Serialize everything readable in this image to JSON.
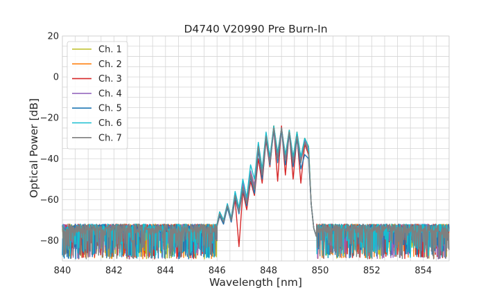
{
  "chart_data": {
    "type": "line",
    "title": "D4740 V20990 Pre Burn-In",
    "xlabel": "Wavelength [nm]",
    "ylabel": "Optical Power [dB]",
    "xlim": [
      840,
      855
    ],
    "ylim": [
      -90,
      20
    ],
    "xticks": [
      "840",
      "842",
      "844",
      "846",
      "848",
      "850",
      "852",
      "854"
    ],
    "yticks": [
      "20",
      "0",
      "−20",
      "−40",
      "−60",
      "−80"
    ],
    "grid": true,
    "legend_position": "top-left",
    "noise_floor": [
      -89,
      -72
    ],
    "series": [
      {
        "name": "Ch. 1",
        "color": "#bcbd22",
        "x": [
          846.0,
          846.1,
          846.25,
          846.4,
          846.55,
          846.7,
          846.85,
          847.0,
          847.15,
          847.3,
          847.45,
          847.6,
          847.75,
          847.9,
          848.05,
          848.2,
          848.35,
          848.5,
          848.65,
          848.8,
          848.95,
          849.1,
          849.25,
          849.4,
          849.55,
          849.65,
          849.75,
          849.85
        ],
        "y": [
          -72,
          -66,
          -70,
          -63,
          -69,
          -58,
          -65,
          -53,
          -60,
          -46,
          -53,
          -33,
          -46,
          -28,
          -40,
          -24,
          -38,
          -25,
          -39,
          -26,
          -40,
          -27,
          -40,
          -30,
          -34,
          -62,
          -74,
          -78
        ]
      },
      {
        "name": "Ch. 2",
        "color": "#ff7f0e",
        "x": [
          846.0,
          846.1,
          846.25,
          846.4,
          846.55,
          846.7,
          846.85,
          847.0,
          847.15,
          847.3,
          847.45,
          847.6,
          847.75,
          847.9,
          848.05,
          848.2,
          848.35,
          848.5,
          848.65,
          848.8,
          848.95,
          849.1,
          849.25,
          849.4,
          849.55,
          849.65,
          849.75,
          849.85
        ],
        "y": [
          -72,
          -67,
          -71,
          -64,
          -70,
          -58,
          -66,
          -53,
          -61,
          -47,
          -54,
          -33,
          -47,
          -28,
          -41,
          -24,
          -39,
          -25,
          -40,
          -26,
          -41,
          -27,
          -41,
          -30,
          -35,
          -62,
          -74,
          -78
        ]
      },
      {
        "name": "Ch. 3",
        "color": "#d62728",
        "x": [
          846.0,
          846.1,
          846.25,
          846.4,
          846.55,
          846.7,
          846.85,
          847.0,
          847.15,
          847.3,
          847.45,
          847.6,
          847.75,
          847.9,
          848.05,
          848.2,
          848.35,
          848.5,
          848.65,
          848.8,
          848.95,
          849.1,
          849.25,
          849.4,
          849.55,
          849.65,
          849.75,
          849.85
        ],
        "y": [
          -73,
          -68,
          -72,
          -63,
          -71,
          -60,
          -83,
          -56,
          -65,
          -51,
          -58,
          -40,
          -52,
          -31,
          -44,
          -25,
          -51,
          -24,
          -48,
          -27,
          -50,
          -29,
          -52,
          -33,
          -38,
          -62,
          -74,
          -78
        ]
      },
      {
        "name": "Ch. 4",
        "color": "#9467bd",
        "x": [
          846.0,
          846.1,
          846.25,
          846.4,
          846.55,
          846.7,
          846.85,
          847.0,
          847.15,
          847.3,
          847.45,
          847.6,
          847.75,
          847.9,
          848.05,
          848.2,
          848.35,
          848.5,
          848.65,
          848.8,
          848.95,
          849.1,
          849.25,
          849.4,
          849.55,
          849.65,
          849.75,
          849.85
        ],
        "y": [
          -72,
          -66,
          -70,
          -62,
          -69,
          -57,
          -65,
          -52,
          -60,
          -46,
          -53,
          -33,
          -46,
          -28,
          -40,
          -25,
          -38,
          -25,
          -39,
          -27,
          -40,
          -28,
          -40,
          -31,
          -36,
          -62,
          -74,
          -78
        ]
      },
      {
        "name": "Ch. 5",
        "color": "#1f77b4",
        "x": [
          846.0,
          846.1,
          846.25,
          846.4,
          846.55,
          846.7,
          846.85,
          847.0,
          847.15,
          847.3,
          847.45,
          847.6,
          847.75,
          847.9,
          848.05,
          848.2,
          848.35,
          848.5,
          848.65,
          848.8,
          848.95,
          849.1,
          849.25,
          849.4,
          849.55,
          849.65,
          849.75,
          849.85
        ],
        "y": [
          -73,
          -68,
          -72,
          -64,
          -71,
          -59,
          -67,
          -55,
          -63,
          -49,
          -57,
          -36,
          -50,
          -30,
          -43,
          -26,
          -42,
          -26,
          -43,
          -28,
          -44,
          -30,
          -45,
          -38,
          -40,
          -62,
          -74,
          -78
        ]
      },
      {
        "name": "Ch. 6",
        "color": "#17becf",
        "x": [
          846.0,
          846.1,
          846.25,
          846.4,
          846.55,
          846.7,
          846.85,
          847.0,
          847.15,
          847.3,
          847.45,
          847.6,
          847.75,
          847.9,
          848.05,
          848.2,
          848.35,
          848.5,
          848.65,
          848.8,
          848.95,
          849.1,
          849.25,
          849.4,
          849.55,
          849.65,
          849.75,
          849.85
        ],
        "y": [
          -72,
          -66,
          -70,
          -62,
          -69,
          -56,
          -64,
          -50,
          -59,
          -43,
          -50,
          -32,
          -45,
          -27,
          -39,
          -24,
          -37,
          -25,
          -38,
          -26,
          -39,
          -27,
          -39,
          -30,
          -34,
          -62,
          -74,
          -78
        ]
      },
      {
        "name": "Ch. 7",
        "color": "#7f7f7f",
        "x": [
          846.0,
          846.1,
          846.25,
          846.4,
          846.55,
          846.7,
          846.85,
          847.0,
          847.15,
          847.3,
          847.45,
          847.6,
          847.75,
          847.9,
          848.05,
          848.2,
          848.35,
          848.5,
          848.65,
          848.8,
          848.95,
          849.1,
          849.25,
          849.4,
          849.55,
          849.65,
          849.75,
          849.85
        ],
        "y": [
          -73,
          -67,
          -71,
          -63,
          -70,
          -58,
          -66,
          -54,
          -62,
          -48,
          -55,
          -34,
          -48,
          -29,
          -42,
          -25,
          -40,
          -25,
          -41,
          -27,
          -42,
          -29,
          -42,
          -32,
          -37,
          -62,
          -74,
          -78
        ]
      }
    ]
  }
}
